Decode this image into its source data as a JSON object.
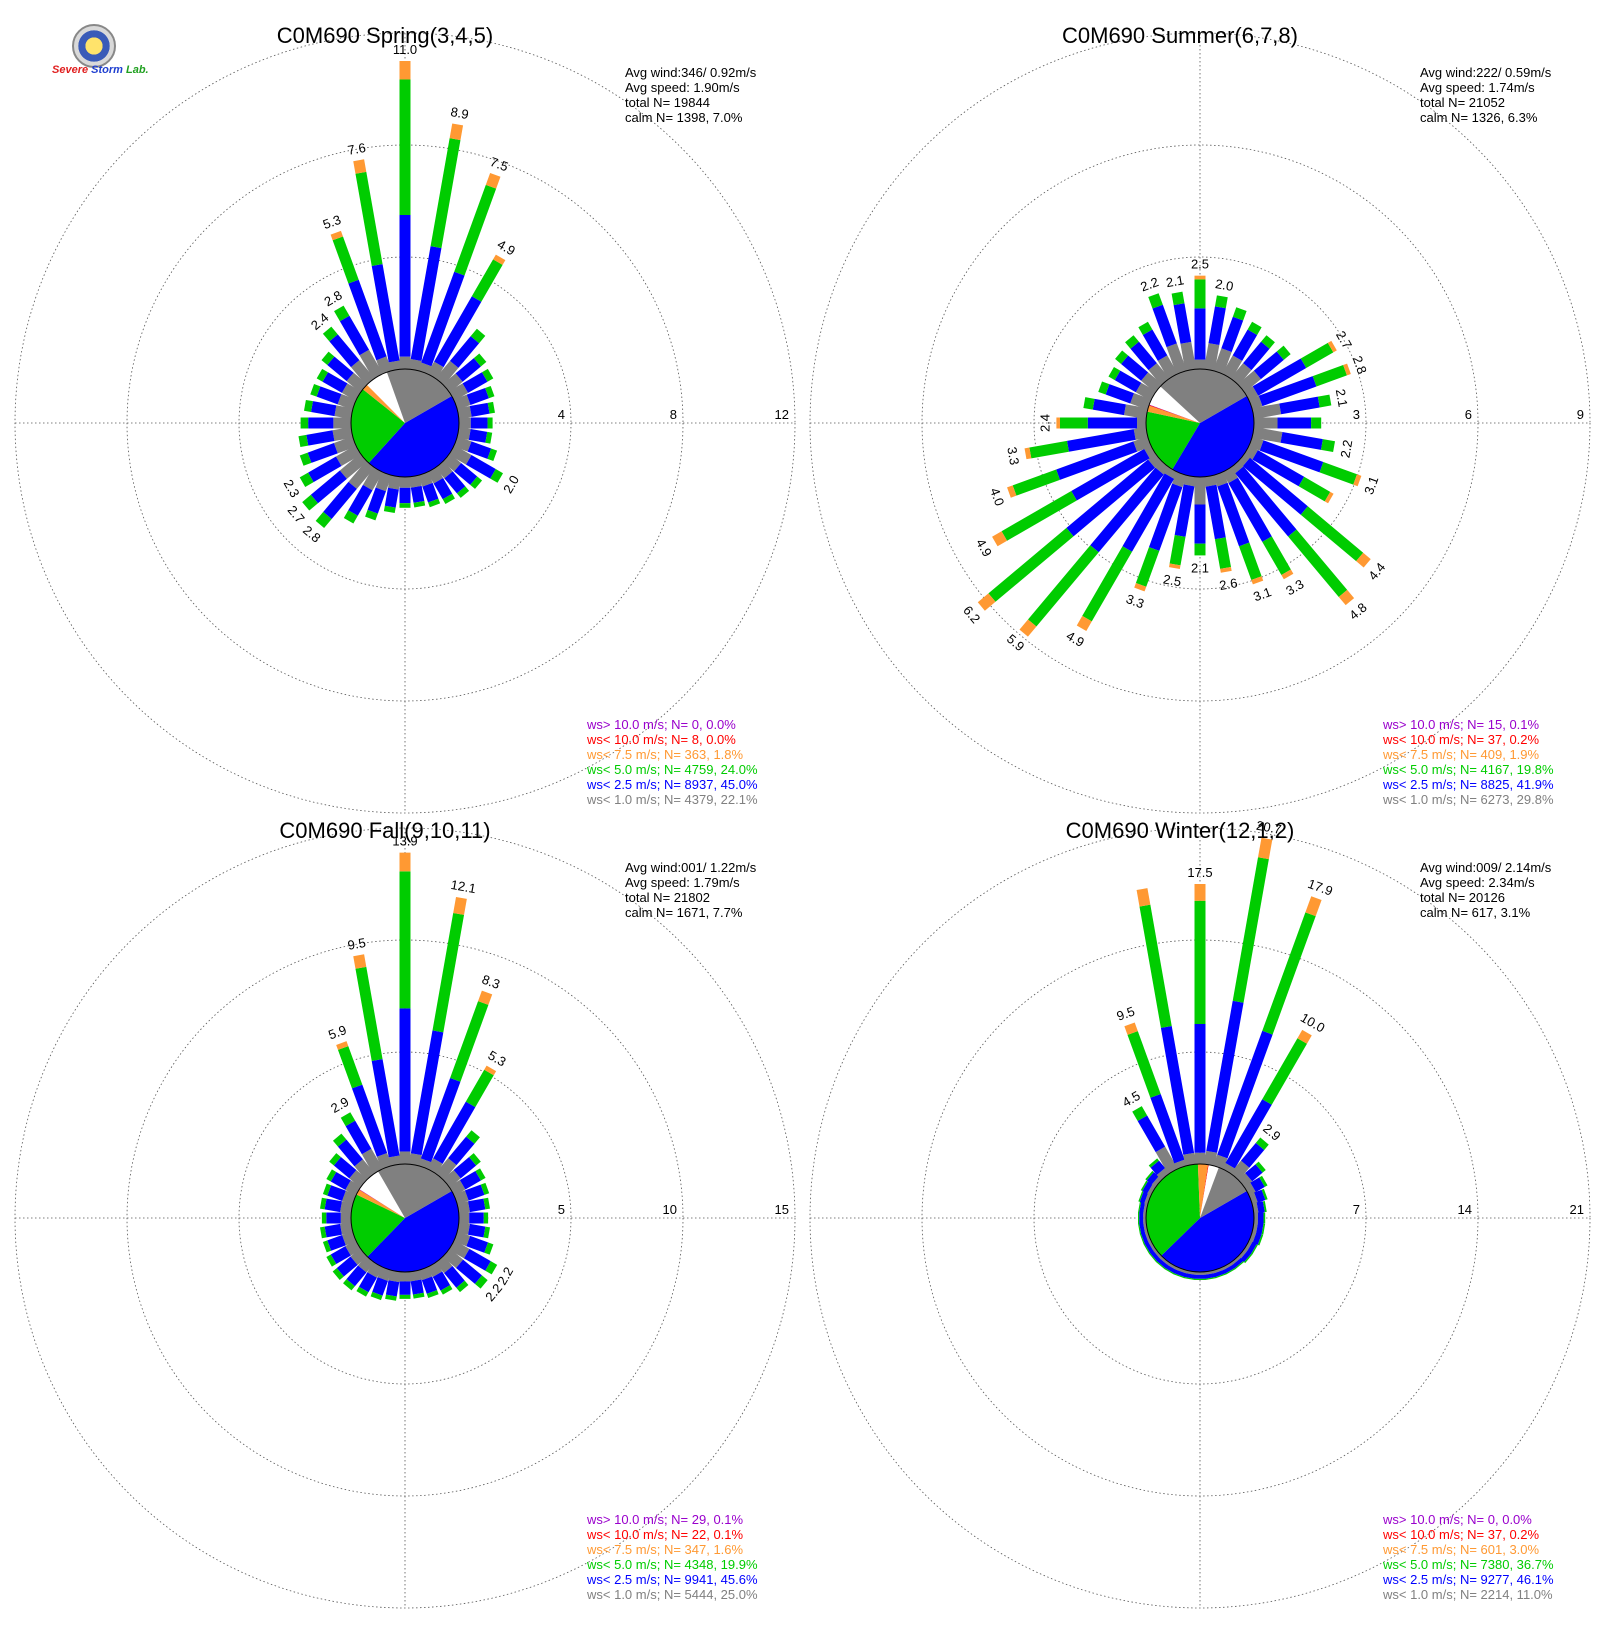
{
  "logo": {
    "text_a": "Severe",
    "text_b": "Storm",
    "text_c": "Lab."
  },
  "colors": {
    "ws_gt10": "#9900cc",
    "ws_lt10": "#ff0000",
    "ws_lt75": "#ff9933",
    "ws_lt5": "#00cc00",
    "ws_lt25": "#0000ff",
    "ws_lt1": "#808080",
    "calm": "#ffffff"
  },
  "chart_data": [
    {
      "type": "windrose",
      "title": "C0M690 Spring(3,4,5)",
      "ring_labels": [
        "4",
        "8",
        "12"
      ],
      "rmax": 12,
      "stats": {
        "avg_wind": "Avg wind:346/ 0.92m/s",
        "avg_speed": "Avg speed: 1.90m/s",
        "total": "total N=      19844",
        "calm": "calm N=   1398,   7.0%"
      },
      "legend": [
        {
          "text": "ws> 10.0 m/s; N=     0,  0.0%",
          "color": "#9900cc"
        },
        {
          "text": "ws< 10.0 m/s; N=     8,  0.0%",
          "color": "#ff0000"
        },
        {
          "text": "ws<  7.5 m/s; N=   363,  1.8%",
          "color": "#ff9933"
        },
        {
          "text": "ws<  5.0 m/s; N=  4759, 24.0%",
          "color": "#00cc00"
        },
        {
          "text": "ws<  2.5 m/s; N=  8937, 45.0%",
          "color": "#0000ff"
        },
        {
          "text": "ws<  1.0 m/s; N=  4379, 22.1%",
          "color": "#808080"
        }
      ],
      "pie_fractions": [
        22.1,
        45.0,
        24.0,
        1.8,
        0.0,
        0.0,
        7.0
      ],
      "directions": [
        {
          "bearing": 0,
          "total": 11.0,
          "label": "11.0"
        },
        {
          "bearing": 10,
          "total": 8.9,
          "label": "8.9"
        },
        {
          "bearing": 20,
          "total": 7.5,
          "label": "7.5"
        },
        {
          "bearing": 30,
          "total": 4.9,
          "label": "4.9"
        },
        {
          "bearing": 40,
          "total": 2.3
        },
        {
          "bearing": 50,
          "total": 1.7
        },
        {
          "bearing": 60,
          "total": 1.6
        },
        {
          "bearing": 70,
          "total": 1.4
        },
        {
          "bearing": 80,
          "total": 1.3
        },
        {
          "bearing": 90,
          "total": 1.2
        },
        {
          "bearing": 100,
          "total": 1.2
        },
        {
          "bearing": 110,
          "total": 1.5
        },
        {
          "bearing": 120,
          "total": 2.0,
          "label": "2.0"
        },
        {
          "bearing": 130,
          "total": 1.5
        },
        {
          "bearing": 140,
          "total": 1.4
        },
        {
          "bearing": 150,
          "total": 1.3
        },
        {
          "bearing": 160,
          "total": 1.2
        },
        {
          "bearing": 170,
          "total": 1.1
        },
        {
          "bearing": 180,
          "total": 1.1
        },
        {
          "bearing": 190,
          "total": 1.3
        },
        {
          "bearing": 200,
          "total": 1.7
        },
        {
          "bearing": 210,
          "total": 2.1
        },
        {
          "bearing": 220,
          "total": 2.8,
          "label": "2.8"
        },
        {
          "bearing": 230,
          "total": 2.7,
          "label": "2.7"
        },
        {
          "bearing": 240,
          "total": 2.3,
          "label": "2.3"
        },
        {
          "bearing": 250,
          "total": 2.0
        },
        {
          "bearing": 260,
          "total": 1.9
        },
        {
          "bearing": 270,
          "total": 1.8
        },
        {
          "bearing": 280,
          "total": 1.7
        },
        {
          "bearing": 290,
          "total": 1.6
        },
        {
          "bearing": 300,
          "total": 1.6
        },
        {
          "bearing": 310,
          "total": 1.8
        },
        {
          "bearing": 320,
          "total": 2.4,
          "label": "2.4"
        },
        {
          "bearing": 330,
          "total": 2.8,
          "label": "2.8"
        },
        {
          "bearing": 340,
          "total": 5.3,
          "label": "5.3"
        },
        {
          "bearing": 350,
          "total": 7.6,
          "label": "7.6"
        }
      ]
    },
    {
      "type": "windrose",
      "title": "C0M690 Summer(6,7,8)",
      "ring_labels": [
        "3",
        "6",
        "9"
      ],
      "rmax": 9,
      "stats": {
        "avg_wind": "Avg wind:222/ 0.59m/s",
        "avg_speed": "Avg speed: 1.74m/s",
        "total": "total N=      21052",
        "calm": "calm N=   1326,   6.3%"
      },
      "legend": [
        {
          "text": "ws> 10.0 m/s; N=    15,  0.1%",
          "color": "#9900cc"
        },
        {
          "text": "ws< 10.0 m/s; N=    37,  0.2%",
          "color": "#ff0000"
        },
        {
          "text": "ws<  7.5 m/s; N=   409,  1.9%",
          "color": "#ff9933"
        },
        {
          "text": "ws<  5.0 m/s; N=  4167, 19.8%",
          "color": "#00cc00"
        },
        {
          "text": "ws<  2.5 m/s; N=  8825, 41.9%",
          "color": "#0000ff"
        },
        {
          "text": "ws<  1.0 m/s; N=  6273, 29.8%",
          "color": "#808080"
        }
      ],
      "pie_fractions": [
        29.8,
        41.9,
        19.8,
        1.9,
        0.2,
        0.1,
        6.3
      ],
      "directions": [
        {
          "bearing": 0,
          "total": 2.5,
          "label": "2.5"
        },
        {
          "bearing": 10,
          "total": 2.0,
          "label": "2.0"
        },
        {
          "bearing": 20,
          "total": 1.8
        },
        {
          "bearing": 30,
          "total": 1.6
        },
        {
          "bearing": 40,
          "total": 1.5
        },
        {
          "bearing": 50,
          "total": 1.6
        },
        {
          "bearing": 60,
          "total": 2.7,
          "label": "2.7"
        },
        {
          "bearing": 70,
          "total": 2.8,
          "label": "2.8"
        },
        {
          "bearing": 80,
          "total": 2.1,
          "label": "2.1"
        },
        {
          "bearing": 90,
          "total": 1.8
        },
        {
          "bearing": 100,
          "total": 2.2,
          "label": "2.2"
        },
        {
          "bearing": 110,
          "total": 3.1,
          "label": "3.1"
        },
        {
          "bearing": 120,
          "total": 2.6
        },
        {
          "bearing": 130,
          "total": 4.4,
          "label": "4.4"
        },
        {
          "bearing": 140,
          "total": 4.8,
          "label": "4.8"
        },
        {
          "bearing": 150,
          "total": 3.3,
          "label": "3.3"
        },
        {
          "bearing": 160,
          "total": 3.1,
          "label": "3.1"
        },
        {
          "bearing": 170,
          "total": 2.6,
          "label": "2.6"
        },
        {
          "bearing": 180,
          "total": 2.1,
          "label": "2.1"
        },
        {
          "bearing": 190,
          "total": 2.5,
          "label": "2.5"
        },
        {
          "bearing": 200,
          "total": 3.3,
          "label": "3.3"
        },
        {
          "bearing": 210,
          "total": 4.9,
          "label": "4.9"
        },
        {
          "bearing": 220,
          "total": 5.9,
          "label": "5.9"
        },
        {
          "bearing": 230,
          "total": 6.2,
          "label": "6.2"
        },
        {
          "bearing": 240,
          "total": 4.9,
          "label": "4.9"
        },
        {
          "bearing": 250,
          "total": 4.0,
          "label": "4.0"
        },
        {
          "bearing": 260,
          "total": 3.3,
          "label": "3.3"
        },
        {
          "bearing": 270,
          "total": 2.4,
          "label": "2.4"
        },
        {
          "bearing": 280,
          "total": 1.7
        },
        {
          "bearing": 290,
          "total": 1.4
        },
        {
          "bearing": 300,
          "total": 1.3
        },
        {
          "bearing": 310,
          "total": 1.4
        },
        {
          "bearing": 320,
          "total": 1.5
        },
        {
          "bearing": 330,
          "total": 1.6
        },
        {
          "bearing": 340,
          "total": 2.2,
          "label": "2.2"
        },
        {
          "bearing": 350,
          "total": 2.1,
          "label": "2.1"
        }
      ]
    },
    {
      "type": "windrose",
      "title": "C0M690 Fall(9,10,11)",
      "ring_labels": [
        "5",
        "10",
        "15"
      ],
      "rmax": 15,
      "stats": {
        "avg_wind": "Avg wind:001/ 1.22m/s",
        "avg_speed": "Avg speed: 1.79m/s",
        "total": "total N=      21802",
        "calm": "calm N=   1671,   7.7%"
      },
      "legend": [
        {
          "text": "ws> 10.0 m/s; N=    29,  0.1%",
          "color": "#9900cc"
        },
        {
          "text": "ws< 10.0 m/s; N=    22,  0.1%",
          "color": "#ff0000"
        },
        {
          "text": "ws<  7.5 m/s; N=   347,  1.6%",
          "color": "#ff9933"
        },
        {
          "text": "ws<  5.0 m/s; N=  4348, 19.9%",
          "color": "#00cc00"
        },
        {
          "text": "ws<  2.5 m/s; N=  9941, 45.6%",
          "color": "#0000ff"
        },
        {
          "text": "ws<  1.0 m/s; N=  5444, 25.0%",
          "color": "#808080"
        }
      ],
      "pie_fractions": [
        25.0,
        45.6,
        19.9,
        1.6,
        0.1,
        0.1,
        7.7
      ],
      "directions": [
        {
          "bearing": 0,
          "total": 13.9,
          "label": "13.9"
        },
        {
          "bearing": 10,
          "total": 12.1,
          "label": "12.1"
        },
        {
          "bearing": 20,
          "total": 8.3,
          "label": "8.3"
        },
        {
          "bearing": 30,
          "total": 5.3,
          "label": "5.3"
        },
        {
          "bearing": 40,
          "total": 2.5
        },
        {
          "bearing": 50,
          "total": 1.8
        },
        {
          "bearing": 60,
          "total": 1.6
        },
        {
          "bearing": 70,
          "total": 1.5
        },
        {
          "bearing": 80,
          "total": 1.4
        },
        {
          "bearing": 90,
          "total": 1.3
        },
        {
          "bearing": 100,
          "total": 1.4
        },
        {
          "bearing": 110,
          "total": 1.7
        },
        {
          "bearing": 120,
          "total": 2.2,
          "label": "2.2"
        },
        {
          "bearing": 130,
          "total": 2.2,
          "label": "2.2"
        },
        {
          "bearing": 140,
          "total": 1.7
        },
        {
          "bearing": 150,
          "total": 1.4
        },
        {
          "bearing": 160,
          "total": 1.3
        },
        {
          "bearing": 170,
          "total": 1.2
        },
        {
          "bearing": 180,
          "total": 1.2
        },
        {
          "bearing": 190,
          "total": 1.3
        },
        {
          "bearing": 200,
          "total": 1.4
        },
        {
          "bearing": 210,
          "total": 1.5
        },
        {
          "bearing": 220,
          "total": 1.6
        },
        {
          "bearing": 230,
          "total": 1.6
        },
        {
          "bearing": 240,
          "total": 1.5
        },
        {
          "bearing": 250,
          "total": 1.4
        },
        {
          "bearing": 260,
          "total": 1.4
        },
        {
          "bearing": 270,
          "total": 1.3
        },
        {
          "bearing": 280,
          "total": 1.4
        },
        {
          "bearing": 290,
          "total": 1.4
        },
        {
          "bearing": 300,
          "total": 1.5
        },
        {
          "bearing": 310,
          "total": 1.8
        },
        {
          "bearing": 320,
          "total": 2.3
        },
        {
          "bearing": 330,
          "total": 2.9,
          "label": "2.9"
        },
        {
          "bearing": 340,
          "total": 5.9,
          "label": "5.9"
        },
        {
          "bearing": 350,
          "total": 9.5,
          "label": "9.5"
        }
      ]
    },
    {
      "type": "windrose",
      "title": "C0M690 Winter(12,1,2)",
      "ring_labels": [
        "7",
        "14",
        "21"
      ],
      "rmax": 21,
      "stats": {
        "avg_wind": "Avg wind:009/ 2.14m/s",
        "avg_speed": "Avg speed: 2.34m/s",
        "total": "total N=      20126",
        "calm": "calm N=    617,   3.1%"
      },
      "legend": [
        {
          "text": "ws> 10.0 m/s; N=     0,  0.0%",
          "color": "#9900cc"
        },
        {
          "text": "ws< 10.0 m/s; N=    37,  0.2%",
          "color": "#ff0000"
        },
        {
          "text": "ws<  7.5 m/s; N=   601,  3.0%",
          "color": "#ff9933"
        },
        {
          "text": "ws<  5.0 m/s; N=  7380, 36.7%",
          "color": "#00cc00"
        },
        {
          "text": "ws<  2.5 m/s; N=  9277, 46.1%",
          "color": "#0000ff"
        },
        {
          "text": "ws<  1.0 m/s; N=  2214, 11.0%",
          "color": "#808080"
        }
      ],
      "pie_fractions": [
        11.0,
        46.1,
        36.7,
        3.0,
        0.2,
        0.0,
        3.1
      ],
      "directions": [
        {
          "bearing": 0,
          "total": 17.5,
          "label": "17.5"
        },
        {
          "bearing": 10,
          "total": 20.7,
          "label": "20.7"
        },
        {
          "bearing": 20,
          "total": 17.9,
          "label": "17.9"
        },
        {
          "bearing": 30,
          "total": 10.0,
          "label": "10.0"
        },
        {
          "bearing": 40,
          "total": 2.9,
          "label": "2.9"
        },
        {
          "bearing": 50,
          "total": 1.7
        },
        {
          "bearing": 60,
          "total": 1.3
        },
        {
          "bearing": 70,
          "total": 1.0
        },
        {
          "bearing": 80,
          "total": 0.8
        },
        {
          "bearing": 90,
          "total": 0.7
        },
        {
          "bearing": 100,
          "total": 0.7
        },
        {
          "bearing": 110,
          "total": 0.7
        },
        {
          "bearing": 120,
          "total": 0.6
        },
        {
          "bearing": 130,
          "total": 0.6
        },
        {
          "bearing": 140,
          "total": 0.5
        },
        {
          "bearing": 150,
          "total": 0.5
        },
        {
          "bearing": 160,
          "total": 0.5
        },
        {
          "bearing": 170,
          "total": 0.5
        },
        {
          "bearing": 180,
          "total": 0.5
        },
        {
          "bearing": 190,
          "total": 0.5
        },
        {
          "bearing": 200,
          "total": 0.5
        },
        {
          "bearing": 210,
          "total": 0.5
        },
        {
          "bearing": 220,
          "total": 0.5
        },
        {
          "bearing": 230,
          "total": 0.5
        },
        {
          "bearing": 240,
          "total": 0.5
        },
        {
          "bearing": 250,
          "total": 0.5
        },
        {
          "bearing": 260,
          "total": 0.5
        },
        {
          "bearing": 270,
          "total": 0.5
        },
        {
          "bearing": 280,
          "total": 0.5
        },
        {
          "bearing": 290,
          "total": 0.6
        },
        {
          "bearing": 300,
          "total": 0.7
        },
        {
          "bearing": 310,
          "total": 0.8
        },
        {
          "bearing": 320,
          "total": 1.2
        },
        {
          "bearing": 330,
          "total": 4.5,
          "label": "4.5"
        },
        {
          "bearing": 340,
          "total": 9.5,
          "label": "9.5"
        },
        {
          "bearing": 350,
          "total": 17.5
        }
      ]
    }
  ]
}
